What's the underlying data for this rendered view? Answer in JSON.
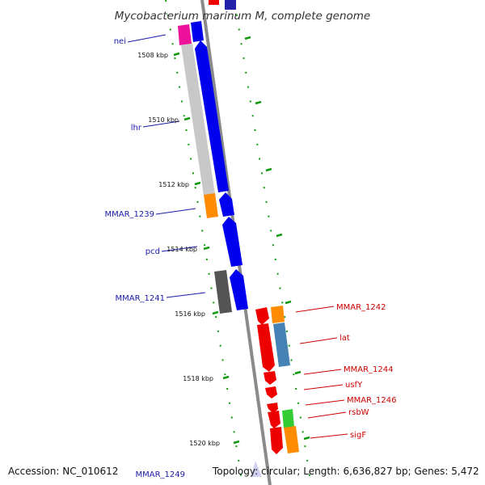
{
  "title": "Mycobacterium marinum M, complete genome",
  "footer": {
    "accession": "Accession: NC_010612",
    "topology": "Topology: circular; Length: 6,636,827 bp; Genes: 5,472"
  },
  "scale_labels": [
    "1508 kbp",
    "1510 kbp",
    "1512 kbp",
    "1514 kbp",
    "1516 kbp",
    "1518 kbp",
    "1520 kbp"
  ],
  "left_genes": [
    "nei",
    "lhr",
    "MMAR_1239",
    "pcd",
    "MMAR_1241",
    "MMAR_1249"
  ],
  "right_genes": [
    "MMAR_1242",
    "lat",
    "MMAR_1244",
    "usfY",
    "MMAR_1246",
    "rsbW",
    "sigF"
  ],
  "colors": {
    "backbone": "#8c8c8c",
    "plus_strand": "#0000ee",
    "minus_strand": "#ee0000",
    "pink": "#ee1199",
    "light_gray": "#c8c8c8",
    "dark_gray": "#666666",
    "orange": "#ff8c00",
    "steel_blue": "#4682b4",
    "green": "#33cc33",
    "lavender": "#d0d0f0",
    "left_label": "#1a1aa8",
    "right_label": "#cc0000",
    "dots": "#119911"
  }
}
